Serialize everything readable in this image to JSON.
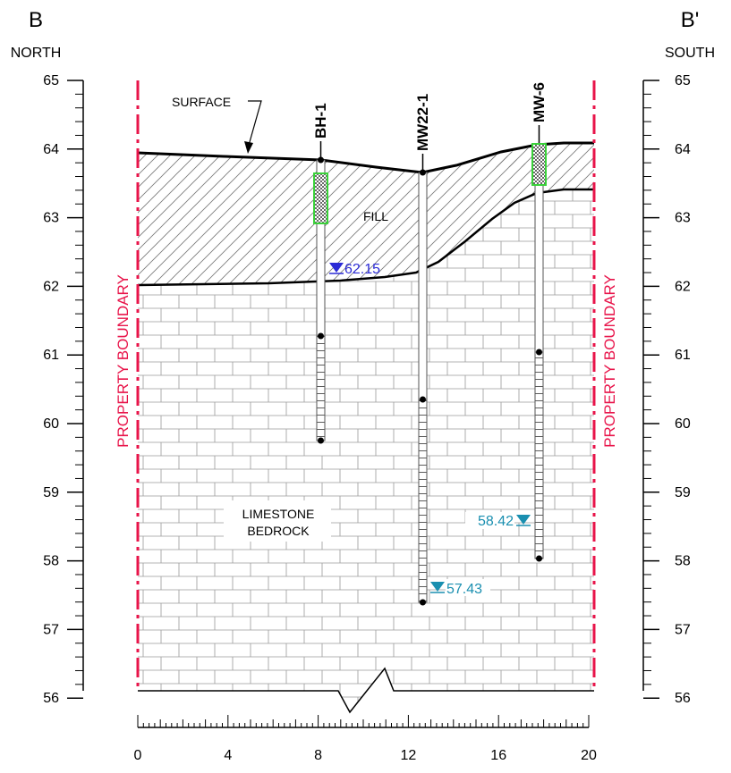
{
  "section": {
    "left_label": "B",
    "left_direction": "NORTH",
    "right_label": "B'",
    "right_direction": "SOUTH"
  },
  "elevation_ticks": [
    "65",
    "64",
    "63",
    "62",
    "61",
    "60",
    "59",
    "58",
    "57",
    "56"
  ],
  "distance_ticks": [
    "0",
    "4",
    "8",
    "12",
    "16",
    "20"
  ],
  "boundary_label": "PROPERTY BOUNDARY",
  "layers": {
    "surface": "SURFACE",
    "fill": "FILL",
    "bedrock_line1": "LIMESTONE",
    "bedrock_line2": "BEDROCK"
  },
  "colors": {
    "boundary": "#e8144a",
    "water_blue": "#2b2bd6",
    "water_teal": "#1a8fb0",
    "seal_green": "#3ad13a"
  },
  "wells": [
    {
      "name": "BH-1",
      "water_level": "62.15",
      "water_color": "#2b2bd6"
    },
    {
      "name": "MW22-1",
      "water_level": "57.43",
      "water_color": "#1a8fb0"
    },
    {
      "name": "MW-6",
      "water_level": "58.42",
      "water_color": "#1a8fb0"
    }
  ]
}
